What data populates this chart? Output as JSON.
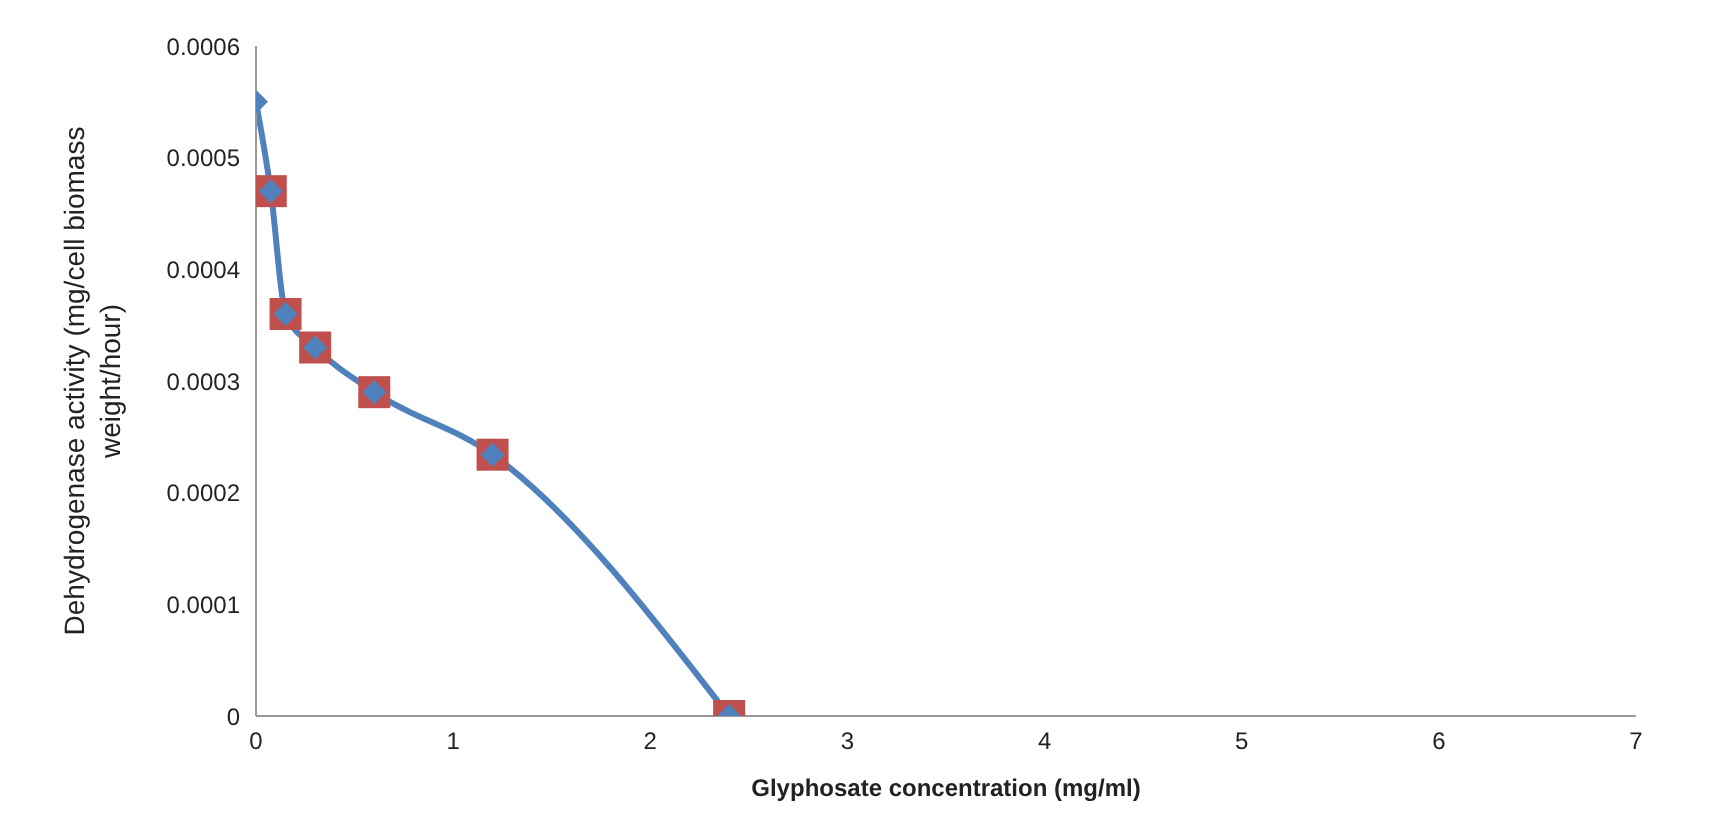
{
  "chart_data": {
    "type": "line",
    "xlabel": "Glyphosate concentration (mg/ml)",
    "ylabel": "Dehydrogenase activity (mg/cell biomass weight/hour)",
    "x": [
      0,
      0.075,
      0.15,
      0.3,
      0.6,
      1.2,
      2.4
    ],
    "series": [
      {
        "type": "scatter",
        "color": "#c0504d",
        "marker": "square",
        "x": [
          0.075,
          0.15,
          0.3,
          0.6,
          1.2,
          2.4
        ],
        "values": [
          0.00047,
          0.00036,
          0.00033,
          0.00029,
          0.000234,
          0
        ]
      },
      {
        "color": "#4f81bd",
        "marker": "diamond",
        "values": [
          0.00055,
          0.00047,
          0.00036,
          0.00033,
          0.00029,
          0.000234,
          0
        ]
      }
    ],
    "xlim": [
      0,
      7
    ],
    "xticks": [
      0,
      1,
      2,
      3,
      4,
      5,
      6,
      7
    ],
    "ylim": [
      0,
      0.0006
    ],
    "yticks": [
      0,
      0.0001,
      0.0002,
      0.0003,
      0.0004,
      0.0005,
      0.0006
    ],
    "grid": false
  }
}
